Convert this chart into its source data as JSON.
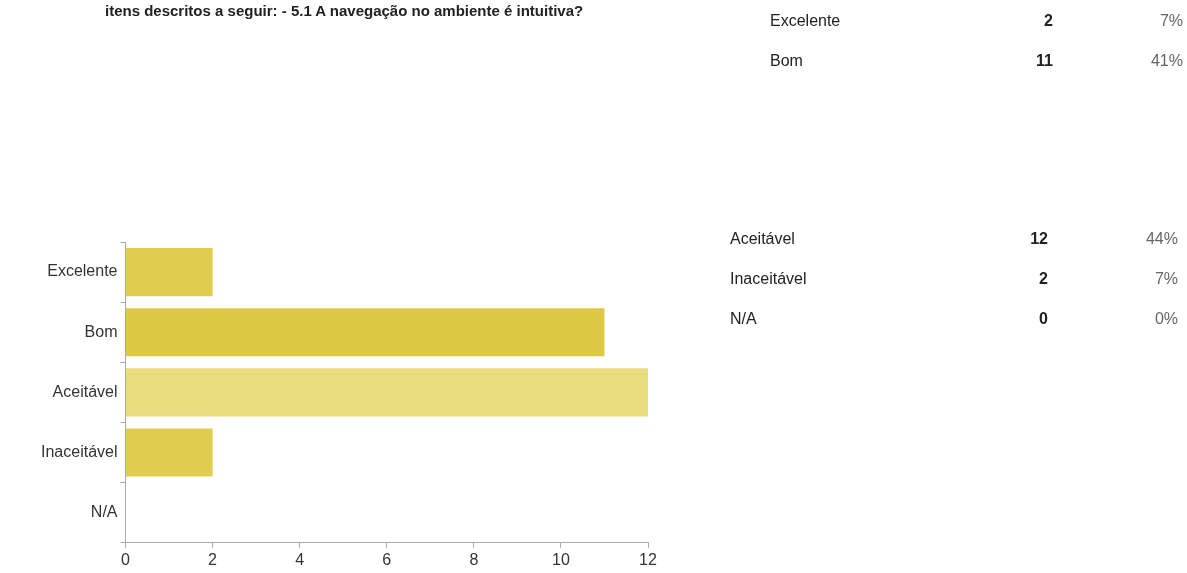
{
  "chart_data": {
    "type": "bar",
    "orientation": "horizontal",
    "title": "itens descritos a seguir: - 5.1 A navegação no ambiente é intuitiva?",
    "categories": [
      "Excelente",
      "Bom",
      "Aceitável",
      "Inaceitável",
      "N/A"
    ],
    "values": [
      2,
      11,
      12,
      2,
      0
    ],
    "annotations": [
      "2",
      "7%",
      "11",
      "41%",
      "12",
      "44%",
      "2",
      "7%",
      "0",
      "0%"
    ],
    "colors": [
      "#e0cd50",
      "#dcc843",
      "#e8dc7c",
      "#e0cd50",
      "#e0cd50"
    ],
    "xlim": [
      0,
      12
    ],
    "xticks": [
      0,
      2,
      4,
      6,
      8,
      10,
      12
    ],
    "grid": false,
    "legend": false
  }
}
